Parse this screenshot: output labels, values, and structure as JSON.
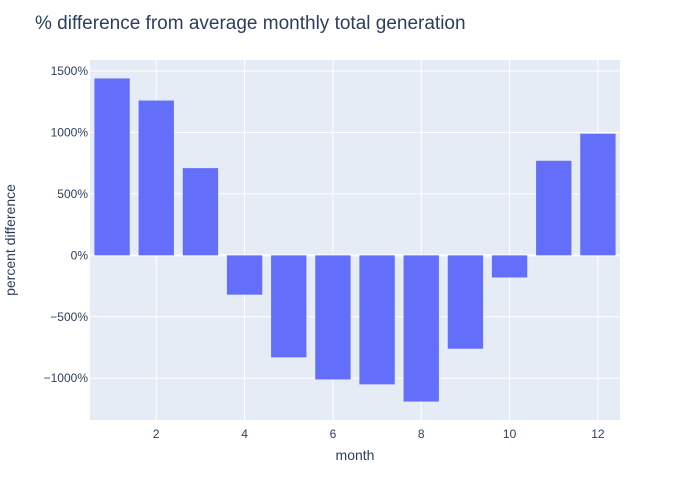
{
  "chart_data": {
    "type": "bar",
    "title": "% difference from average monthly total generation",
    "xlabel": "month",
    "ylabel": "percent difference",
    "x": [
      1,
      2,
      3,
      4,
      5,
      6,
      7,
      8,
      9,
      10,
      11,
      12
    ],
    "values": [
      1440,
      1260,
      710,
      -320,
      -830,
      -1010,
      -1050,
      -1190,
      -760,
      -180,
      770,
      990
    ],
    "xlim": [
      0.5,
      12.5
    ],
    "ylim": [
      -1340,
      1590
    ],
    "x_ticks": [
      2,
      4,
      6,
      8,
      10,
      12
    ],
    "x_tick_labels": [
      "2",
      "4",
      "6",
      "8",
      "10",
      "12"
    ],
    "y_ticks": [
      -1000,
      -500,
      0,
      500,
      1000,
      1500
    ],
    "y_tick_labels": [
      "−1000%",
      "−500%",
      "0%",
      "500%",
      "1000%",
      "1500%"
    ],
    "grid": true,
    "colors": {
      "bar": "#636efa",
      "plot_bg": "#e5ecf6",
      "grid": "#ffffff",
      "text": "#2a3f5f"
    }
  }
}
